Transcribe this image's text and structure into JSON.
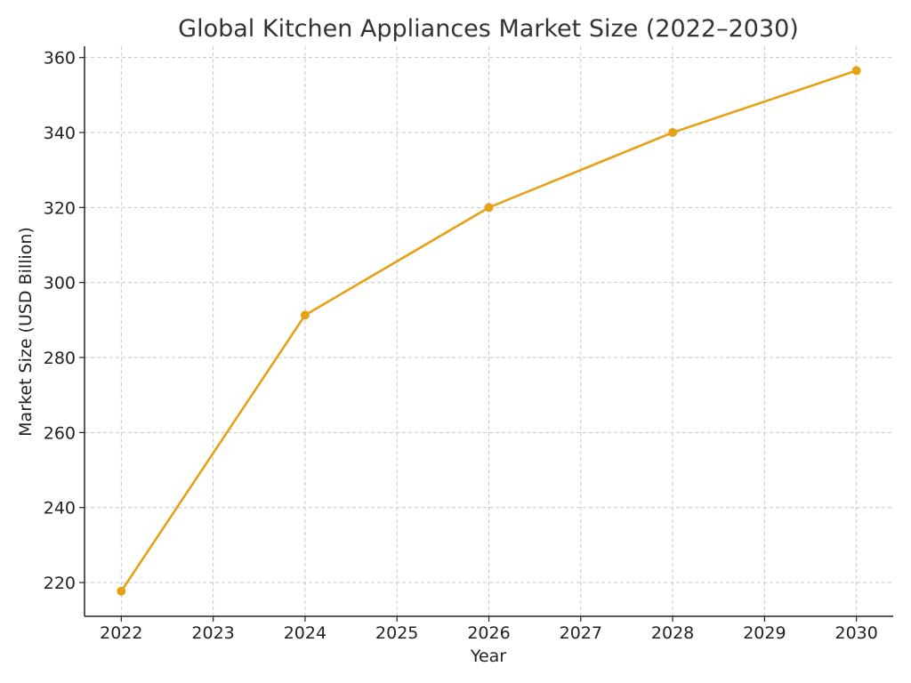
{
  "chart_data": {
    "type": "line",
    "title": "Global Kitchen Appliances Market Size (2022–2030)",
    "xlabel": "Year",
    "ylabel": "Market Size (USD Billion)",
    "x_ticks": [
      "2022",
      "2023",
      "2024",
      "2025",
      "2026",
      "2027",
      "2028",
      "2029",
      "2030"
    ],
    "y_ticks": [
      220,
      240,
      260,
      280,
      300,
      320,
      340,
      360
    ],
    "xlim": [
      2021.6,
      2030.4
    ],
    "ylim": [
      211,
      363
    ],
    "grid": true,
    "series": [
      {
        "color": "#E6A117",
        "points": [
          {
            "x": 2022,
            "y": 217.7
          },
          {
            "x": 2024,
            "y": 291.3
          },
          {
            "x": 2026,
            "y": 320.0
          },
          {
            "x": 2028,
            "y": 340.0
          },
          {
            "x": 2030,
            "y": 356.5
          }
        ]
      }
    ]
  }
}
